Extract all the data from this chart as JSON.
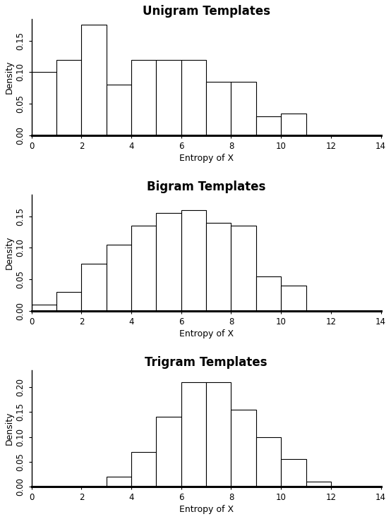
{
  "titles": [
    "Unigram Templates",
    "Bigram Templates",
    "Trigram Templates"
  ],
  "xlabel": "Entropy of X",
  "ylabel": "Density",
  "xlim": [
    0,
    14
  ],
  "xticks": [
    0,
    2,
    4,
    6,
    8,
    10,
    12,
    14
  ],
  "bin_edges": [
    0,
    1,
    2,
    3,
    4,
    5,
    6,
    7,
    8,
    9,
    10,
    11,
    12,
    13,
    14
  ],
  "unigram_densities": [
    0.1,
    0.12,
    0.175,
    0.08,
    0.12,
    0.12,
    0.12,
    0.085,
    0.085,
    0.03,
    0.035,
    0.0,
    0.0,
    0.0
  ],
  "bigram_densities": [
    0.01,
    0.03,
    0.075,
    0.105,
    0.135,
    0.155,
    0.16,
    0.14,
    0.135,
    0.055,
    0.04,
    0.0,
    0.0,
    0.0
  ],
  "trigram_densities": [
    0.0,
    0.0,
    0.0,
    0.02,
    0.07,
    0.14,
    0.21,
    0.21,
    0.155,
    0.1,
    0.055,
    0.01,
    0.0,
    0.0
  ],
  "ylim_unigram": [
    0,
    0.185
  ],
  "ylim_bigram": [
    0,
    0.185
  ],
  "ylim_trigram": [
    0,
    0.235
  ],
  "yticks_unigram": [
    0.0,
    0.05,
    0.1,
    0.15
  ],
  "yticks_bigram": [
    0.0,
    0.05,
    0.1,
    0.15
  ],
  "yticks_trigram": [
    0.0,
    0.05,
    0.1,
    0.15,
    0.2
  ],
  "title_fontsize": 12,
  "axis_fontsize": 9,
  "tick_fontsize": 8.5
}
